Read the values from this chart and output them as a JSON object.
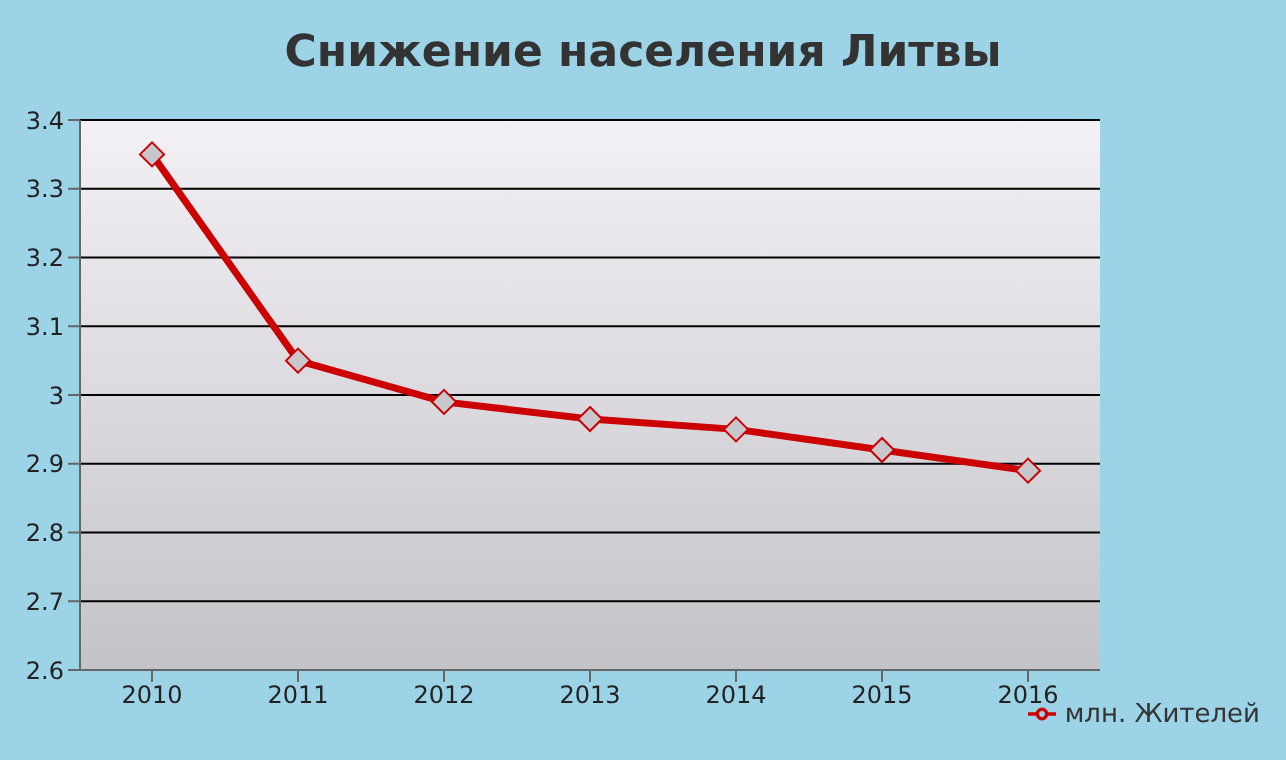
{
  "chart_data": {
    "type": "line",
    "title": "Снижение населения Литвы",
    "categories": [
      "2010",
      "2011",
      "2012",
      "2013",
      "2014",
      "2015",
      "2016"
    ],
    "series": [
      {
        "name": "млн. Жителей",
        "color": "#cc0000",
        "values": [
          3.35,
          3.05,
          2.99,
          2.965,
          2.95,
          2.92,
          2.89
        ]
      }
    ],
    "ylim": [
      2.6,
      3.4
    ],
    "yticks": [
      2.6,
      2.7,
      2.8,
      2.9,
      3,
      3.1,
      3.2,
      3.3,
      3.4
    ],
    "grid": "y",
    "legend": "bottom right",
    "marker": "diamond",
    "line_style": "solid"
  }
}
